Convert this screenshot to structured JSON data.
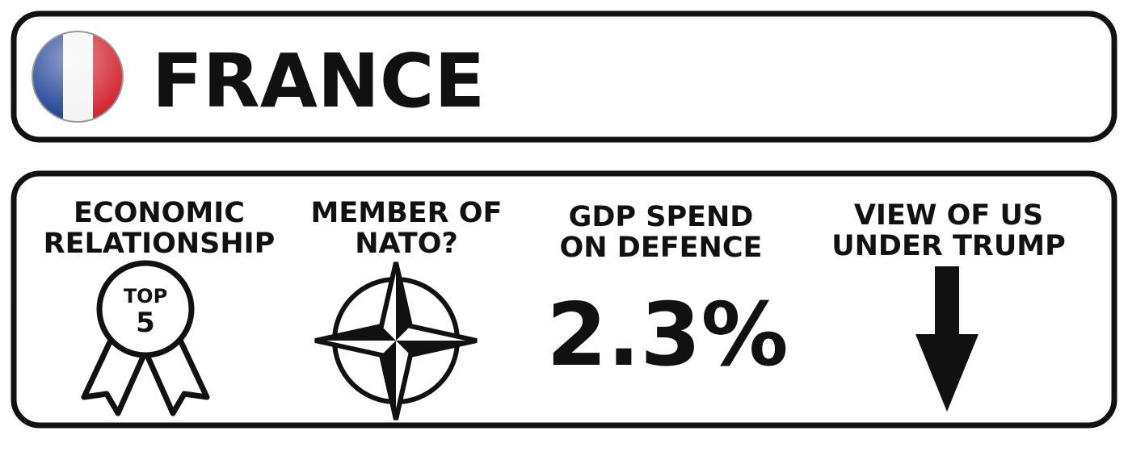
{
  "header": {
    "title": "FRANCE"
  },
  "stats": [
    {
      "heading": [
        "ECONOMIC",
        "RELATIONSHIP"
      ],
      "badge_top": "TOP",
      "badge_value": "5"
    },
    {
      "heading": [
        "MEMBER OF",
        "NATO?"
      ]
    },
    {
      "heading": [
        "GDP SPEND",
        "ON DEFENCE"
      ],
      "value": "2.3%"
    },
    {
      "heading": [
        "VIEW OF US",
        "UNDER TRUMP"
      ]
    }
  ]
}
